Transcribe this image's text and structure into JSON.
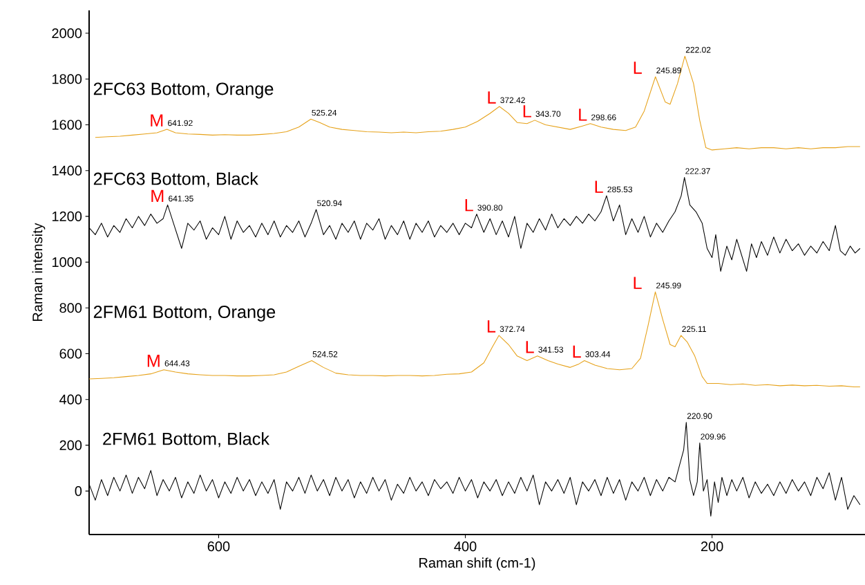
{
  "chart_data": {
    "type": "line",
    "xlabel": "Raman shift (cm-1)",
    "ylabel": "Raman intensity",
    "xlim": [
      705,
      76
    ],
    "ylim": [
      -190,
      2100
    ],
    "xticks": [
      600,
      400,
      200
    ],
    "yticks": [
      0,
      200,
      400,
      600,
      800,
      1000,
      1200,
      1400,
      1600,
      1800,
      2000
    ],
    "series": [
      {
        "name": "2FC63 Bottom, Orange",
        "color": "#e6a118",
        "x": [
          700,
          690,
          680,
          670,
          660,
          650,
          641.92,
          635,
          625,
          615,
          605,
          595,
          585,
          575,
          565,
          555,
          545,
          535,
          525.24,
          518,
          510,
          500,
          490,
          480,
          470,
          460,
          450,
          440,
          430,
          420,
          410,
          400,
          390,
          380,
          372.42,
          365,
          358,
          350,
          343.7,
          335,
          325,
          315,
          305,
          298.66,
          290,
          280,
          270,
          262,
          255,
          245.89,
          238,
          234,
          228,
          222.02,
          215,
          210,
          205,
          200,
          190,
          180,
          170,
          160,
          150,
          140,
          130,
          120,
          110,
          100,
          90,
          80
        ],
        "values": [
          1545,
          1548,
          1550,
          1555,
          1560,
          1565,
          1580,
          1565,
          1560,
          1558,
          1555,
          1557,
          1555,
          1555,
          1558,
          1562,
          1570,
          1590,
          1625,
          1610,
          1590,
          1580,
          1575,
          1570,
          1568,
          1565,
          1568,
          1565,
          1570,
          1572,
          1580,
          1590,
          1615,
          1650,
          1680,
          1650,
          1610,
          1605,
          1620,
          1600,
          1590,
          1580,
          1595,
          1605,
          1590,
          1580,
          1575,
          1590,
          1660,
          1810,
          1700,
          1690,
          1780,
          1900,
          1780,
          1620,
          1500,
          1490,
          1495,
          1500,
          1495,
          1500,
          1500,
          1495,
          1500,
          1495,
          1500,
          1500,
          1505,
          1505
        ]
      },
      {
        "name": "2FC63 Bottom, Black",
        "color": "#000000",
        "x": [
          705,
          700,
          695,
          690,
          685,
          680,
          675,
          670,
          665,
          660,
          655,
          650,
          645,
          641.35,
          636,
          630,
          625,
          620,
          615,
          610,
          605,
          600,
          595,
          590,
          585,
          580,
          575,
          570,
          565,
          560,
          555,
          550,
          545,
          540,
          535,
          530,
          525,
          520.94,
          515,
          510,
          505,
          500,
          495,
          490,
          485,
          480,
          475,
          470,
          465,
          460,
          455,
          450,
          445,
          440,
          435,
          430,
          425,
          420,
          415,
          410,
          405,
          400,
          395,
          390.8,
          385,
          380,
          375,
          370,
          365,
          360,
          355,
          350,
          345,
          340,
          335,
          330,
          325,
          320,
          315,
          310,
          305,
          300,
          295,
          290,
          285.53,
          280,
          275,
          270,
          265,
          260,
          255,
          250,
          245,
          240,
          235,
          230,
          225,
          222.37,
          218,
          213,
          208,
          204,
          200,
          197,
          193,
          188,
          184,
          180,
          176,
          172,
          168,
          164,
          160,
          155,
          150,
          145,
          140,
          135,
          130,
          125,
          120,
          115,
          110,
          105,
          100,
          96,
          92,
          88,
          84,
          80
        ],
        "values": [
          1150,
          1120,
          1170,
          1110,
          1160,
          1130,
          1190,
          1150,
          1200,
          1160,
          1210,
          1170,
          1190,
          1250,
          1160,
          1060,
          1170,
          1140,
          1180,
          1100,
          1150,
          1120,
          1200,
          1100,
          1180,
          1130,
          1160,
          1110,
          1170,
          1120,
          1180,
          1110,
          1160,
          1130,
          1180,
          1110,
          1170,
          1230,
          1120,
          1160,
          1100,
          1170,
          1130,
          1180,
          1100,
          1170,
          1140,
          1190,
          1100,
          1160,
          1120,
          1180,
          1100,
          1170,
          1130,
          1180,
          1110,
          1160,
          1130,
          1170,
          1120,
          1170,
          1150,
          1210,
          1130,
          1190,
          1120,
          1180,
          1110,
          1200,
          1060,
          1170,
          1130,
          1190,
          1140,
          1210,
          1150,
          1190,
          1160,
          1200,
          1170,
          1210,
          1180,
          1220,
          1290,
          1180,
          1250,
          1120,
          1190,
          1130,
          1200,
          1110,
          1170,
          1130,
          1180,
          1220,
          1290,
          1370,
          1250,
          1220,
          1170,
          1060,
          1020,
          1120,
          960,
          1070,
          1010,
          1100,
          1030,
          960,
          1080,
          1020,
          1090,
          1030,
          1110,
          1040,
          1100,
          1050,
          1080,
          1030,
          1070,
          1040,
          1090,
          1050,
          1160,
          1050,
          1030,
          1070,
          1040,
          1060
        ]
      },
      {
        "name": "2FM61 Bottom, Orange",
        "color": "#e6a118",
        "x": [
          705,
          695,
          685,
          675,
          665,
          655,
          644.43,
          635,
          625,
          615,
          605,
          595,
          585,
          575,
          565,
          555,
          545,
          535,
          524.52,
          515,
          505,
          495,
          485,
          475,
          465,
          455,
          445,
          435,
          425,
          415,
          405,
          395,
          385,
          378,
          372.74,
          365,
          358,
          350,
          341.53,
          333,
          325,
          315,
          308,
          303.44,
          295,
          285,
          275,
          265,
          258,
          252,
          245.99,
          240,
          234,
          230,
          225.11,
          220,
          214,
          208,
          204,
          195,
          185,
          175,
          165,
          155,
          145,
          135,
          125,
          115,
          105,
          95,
          85,
          80
        ],
        "values": [
          490,
          492,
          495,
          500,
          505,
          512,
          530,
          520,
          512,
          508,
          505,
          505,
          503,
          503,
          505,
          508,
          520,
          545,
          570,
          540,
          515,
          508,
          505,
          505,
          503,
          505,
          505,
          503,
          505,
          510,
          512,
          520,
          560,
          630,
          680,
          640,
          590,
          570,
          590,
          570,
          555,
          540,
          555,
          570,
          550,
          535,
          530,
          535,
          580,
          720,
          870,
          750,
          640,
          630,
          680,
          650,
          590,
          500,
          470,
          470,
          465,
          468,
          462,
          465,
          460,
          463,
          460,
          462,
          458,
          460,
          455,
          455
        ]
      },
      {
        "name": "2FM61 Bottom, Black",
        "color": "#000000",
        "x": [
          705,
          700,
          695,
          690,
          685,
          680,
          675,
          670,
          665,
          660,
          655,
          650,
          645,
          640,
          635,
          630,
          625,
          620,
          615,
          610,
          605,
          600,
          595,
          590,
          585,
          580,
          575,
          570,
          565,
          560,
          555,
          550,
          545,
          540,
          535,
          530,
          525,
          520,
          515,
          510,
          505,
          500,
          495,
          490,
          485,
          480,
          475,
          470,
          465,
          460,
          455,
          450,
          445,
          440,
          435,
          430,
          425,
          420,
          415,
          410,
          405,
          400,
          395,
          390,
          385,
          380,
          375,
          370,
          365,
          360,
          355,
          350,
          345,
          340,
          335,
          330,
          325,
          320,
          315,
          310,
          305,
          300,
          295,
          290,
          285,
          280,
          275,
          270,
          265,
          260,
          255,
          250,
          245,
          240,
          235,
          230,
          226,
          223,
          220.9,
          218,
          215,
          212,
          209.96,
          207,
          204,
          201,
          198,
          195,
          192,
          188,
          184,
          180,
          175,
          170,
          165,
          160,
          155,
          150,
          145,
          140,
          135,
          130,
          125,
          120,
          115,
          110,
          105,
          100,
          95,
          90,
          85,
          80
        ],
        "values": [
          30,
          -40,
          50,
          -20,
          60,
          0,
          70,
          -10,
          60,
          10,
          90,
          -20,
          50,
          0,
          60,
          -30,
          40,
          -10,
          70,
          0,
          50,
          -30,
          40,
          -10,
          60,
          0,
          50,
          -20,
          40,
          -10,
          50,
          -80,
          40,
          0,
          60,
          -10,
          70,
          0,
          50,
          -20,
          60,
          0,
          50,
          -30,
          40,
          -10,
          60,
          0,
          50,
          -40,
          30,
          -10,
          60,
          0,
          40,
          -20,
          50,
          10,
          40,
          -10,
          60,
          0,
          50,
          -30,
          40,
          0,
          50,
          -20,
          40,
          -10,
          60,
          0,
          70,
          -60,
          40,
          0,
          50,
          -10,
          60,
          -60,
          40,
          0,
          50,
          -20,
          60,
          -10,
          50,
          -40,
          40,
          0,
          60,
          -20,
          50,
          0,
          60,
          40,
          120,
          180,
          300,
          50,
          -20,
          40,
          210,
          0,
          50,
          -110,
          40,
          -50,
          60,
          -20,
          50,
          0,
          60,
          -30,
          40,
          -10,
          30,
          -20,
          40,
          -10,
          50,
          0,
          40,
          -20,
          60,
          10,
          80,
          -40,
          60,
          -80,
          -20,
          -60
        ]
      }
    ],
    "annotations": [
      {
        "text": "641.92",
        "x": 641.92,
        "y": 1580
      },
      {
        "text": "525.24",
        "x": 525.24,
        "y": 1625
      },
      {
        "text": "372.42",
        "x": 372.42,
        "y": 1680
      },
      {
        "text": "343.70",
        "x": 343.7,
        "y": 1620
      },
      {
        "text": "298.66",
        "x": 298.66,
        "y": 1605
      },
      {
        "text": "245.89",
        "x": 245.89,
        "y": 1810
      },
      {
        "text": "222.02",
        "x": 222.02,
        "y": 1900
      },
      {
        "text": "641.35",
        "x": 641.35,
        "y": 1250
      },
      {
        "text": "520.94",
        "x": 520.94,
        "y": 1230
      },
      {
        "text": "390.80",
        "x": 390.8,
        "y": 1210
      },
      {
        "text": "285.53",
        "x": 285.53,
        "y": 1290
      },
      {
        "text": "222.37",
        "x": 222.37,
        "y": 1370
      },
      {
        "text": "644.43",
        "x": 644.43,
        "y": 530
      },
      {
        "text": "524.52",
        "x": 524.52,
        "y": 570
      },
      {
        "text": "372.74",
        "x": 372.74,
        "y": 680
      },
      {
        "text": "341.53",
        "x": 341.53,
        "y": 590
      },
      {
        "text": "303.44",
        "x": 303.44,
        "y": 570
      },
      {
        "text": "245.99",
        "x": 245.99,
        "y": 870
      },
      {
        "text": "225.11",
        "x": 225.11,
        "y": 680
      },
      {
        "text": "220.90",
        "x": 220.9,
        "y": 300
      },
      {
        "text": "209.96",
        "x": 209.96,
        "y": 210
      },
      "M",
      "L",
      "L",
      "L",
      "L",
      "M",
      "L",
      "L",
      "M",
      "L",
      "L",
      "L",
      "L"
    ]
  }
}
